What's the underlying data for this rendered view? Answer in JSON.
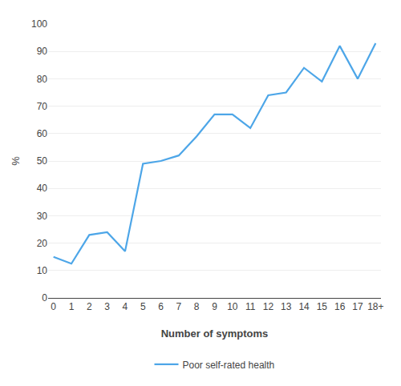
{
  "chart_data": {
    "type": "line",
    "xlabel": "Number of symptoms",
    "ylabel": "%",
    "categories": [
      "0",
      "1",
      "2",
      "3",
      "4",
      "5",
      "6",
      "7",
      "8",
      "9",
      "10",
      "11",
      "12",
      "13",
      "14",
      "15",
      "16",
      "17",
      "18+"
    ],
    "series": [
      {
        "name": "Poor self-rated health",
        "color": "#4da6e8",
        "values": [
          15,
          12.5,
          23,
          24,
          17,
          49,
          50,
          52,
          59,
          67,
          67,
          62,
          74,
          75,
          84,
          79,
          92,
          80,
          93
        ]
      }
    ],
    "ylim": [
      0,
      100
    ],
    "yticks": [
      0,
      10,
      20,
      30,
      40,
      50,
      60,
      70,
      80,
      90,
      100
    ],
    "grid": true,
    "legend": "bottom"
  }
}
